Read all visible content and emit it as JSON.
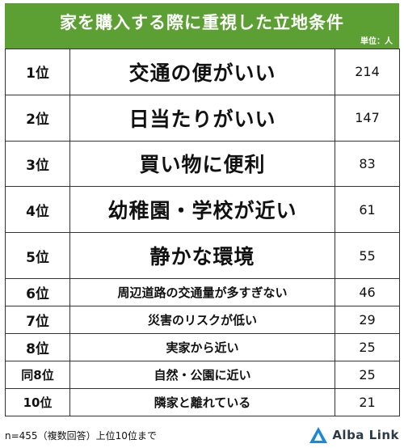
{
  "header": {
    "title": "家を購入する際に重視した立地条件",
    "unit": "単位：人"
  },
  "chart_data": {
    "type": "table",
    "title": "家を購入する際に重視した立地条件",
    "unit": "単位：人",
    "rows": [
      {
        "rank": "1位",
        "label": "交通の便がいい",
        "value": 214
      },
      {
        "rank": "2位",
        "label": "日当たりがいい",
        "value": 147
      },
      {
        "rank": "3位",
        "label": "買い物に便利",
        "value": 83
      },
      {
        "rank": "4位",
        "label": "幼稚園・学校が近い",
        "value": 61
      },
      {
        "rank": "5位",
        "label": "静かな環境",
        "value": 55
      },
      {
        "rank": "6位",
        "label": "周辺道路の交通量が多すぎない",
        "value": 46
      },
      {
        "rank": "7位",
        "label": "災害のリスクが低い",
        "value": 29
      },
      {
        "rank": "8位",
        "label": "実家から近い",
        "value": 25
      },
      {
        "rank": "同8位",
        "label": "自然・公園に近い",
        "value": 25
      },
      {
        "rank": "10位",
        "label": "隣家と離れている",
        "value": 21
      }
    ]
  },
  "footer": {
    "note": "n=455（複数回答）上位10位まで",
    "brand": "Alba Link"
  },
  "colors": {
    "header_bg": "#5c9f32",
    "logo_blue": "#1e88d6"
  }
}
